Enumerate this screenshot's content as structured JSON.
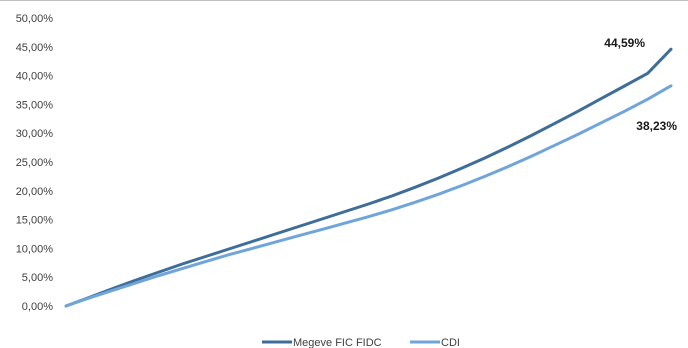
{
  "chart_data": {
    "type": "line",
    "y_tick_labels": [
      "0,00%",
      "5,00%",
      "10,00%",
      "15,00%",
      "20,00%",
      "25,00%",
      "30,00%",
      "35,00%",
      "40,00%",
      "45,00%",
      "50,00%"
    ],
    "ylim": [
      0,
      50
    ],
    "grid": false,
    "legend_position": "bottom",
    "x": [
      0,
      1,
      2,
      3,
      4,
      5,
      6,
      7,
      8,
      9,
      10,
      11,
      12,
      13,
      14,
      15,
      16,
      17,
      18,
      19,
      20,
      21,
      22,
      23,
      24,
      25,
      26
    ],
    "series": [
      {
        "name": "Megeve FIC FIDC",
        "color": "#3E6D9A",
        "values": [
          0.0,
          1.5,
          3.0,
          4.5,
          5.9,
          7.3,
          8.6,
          9.9,
          11.2,
          12.5,
          13.8,
          15.1,
          16.4,
          17.7,
          19.1,
          20.6,
          22.2,
          23.9,
          25.7,
          27.6,
          29.6,
          31.7,
          33.8,
          36.0,
          38.2,
          40.4,
          44.59
        ],
        "end_label": "44,59%"
      },
      {
        "name": "CDI",
        "color": "#6FA5DA",
        "values": [
          0.0,
          1.4,
          2.7,
          4.0,
          5.3,
          6.5,
          7.7,
          8.9,
          10.0,
          11.1,
          12.2,
          13.3,
          14.4,
          15.5,
          16.7,
          18.0,
          19.4,
          20.9,
          22.5,
          24.2,
          26.0,
          27.9,
          29.8,
          31.8,
          33.8,
          35.9,
          38.23
        ],
        "end_label": "38,23%"
      }
    ]
  }
}
